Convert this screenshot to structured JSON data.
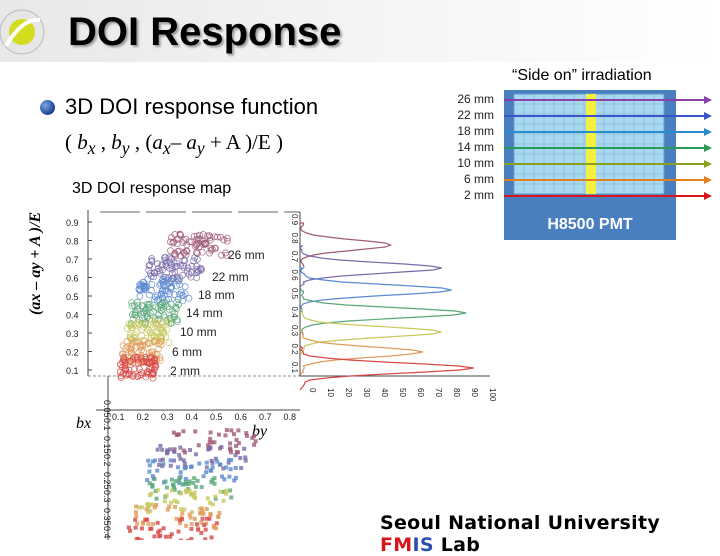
{
  "slide": {
    "title": "DOI Response",
    "side_on_label": "“Side on” irradiation",
    "bullet_text": "3D DOI response function",
    "formula": {
      "open": "( ",
      "bx": "b",
      "bx_sub": "x",
      "by": "b",
      "by_sub": "y",
      "ax": "a",
      "ax_sub": "x",
      "minus": "– ",
      "ay": "a",
      "ay_sub": "y",
      "rest": " + A )/E )"
    },
    "map_title": "3D DOI response map",
    "ylabel": "(ax – ay + A )/E",
    "footer": {
      "part1": "Seoul National University ",
      "fm": "FM",
      "is": "IS",
      "part2": " Lab"
    }
  },
  "pmt": {
    "label": "H8500 PMT",
    "depth_labels": [
      "26 mm",
      "22 mm",
      "18 mm",
      "14 mm",
      "10 mm",
      "6 mm",
      "2 mm"
    ],
    "beam_colors": [
      "#8b3fa8",
      "#3a55c8",
      "#2a8ad0",
      "#2a9a5a",
      "#8aa020",
      "#e08020",
      "#d8151b"
    ]
  },
  "chart_data": {
    "type": "scatter",
    "title": "3D DOI response map",
    "ylabel": "(ax – ay + A )/E",
    "xlabel": "bx",
    "zlabel": "by",
    "series": [
      {
        "name": "26 mm",
        "color": "#a05a78"
      },
      {
        "name": "22 mm",
        "color": "#7a6aa8"
      },
      {
        "name": "18 mm",
        "color": "#5a8ad0"
      },
      {
        "name": "14 mm",
        "color": "#5aa87a"
      },
      {
        "name": "10 mm",
        "color": "#c8c860"
      },
      {
        "name": "6 mm",
        "color": "#e09a5a"
      },
      {
        "name": "2 mm",
        "color": "#d84848"
      }
    ],
    "y_ticks": [
      "0.1",
      "0.2",
      "0.3",
      "0.4",
      "0.5",
      "0.6",
      "0.7",
      "0.8",
      "0.9"
    ],
    "x_ticks": [
      "0.1",
      "0.2",
      "0.3",
      "0.4",
      "0.5",
      "0.6",
      "0.7",
      "0.8"
    ],
    "by_ticks": [
      "0.05",
      "0.1",
      "0.15",
      "0.2",
      "0.25",
      "0.3",
      "0.35",
      "0.4"
    ],
    "hist_ticks": [
      "0",
      "10",
      "20",
      "30",
      "40",
      "50",
      "60",
      "70",
      "80",
      "90",
      "100"
    ]
  }
}
